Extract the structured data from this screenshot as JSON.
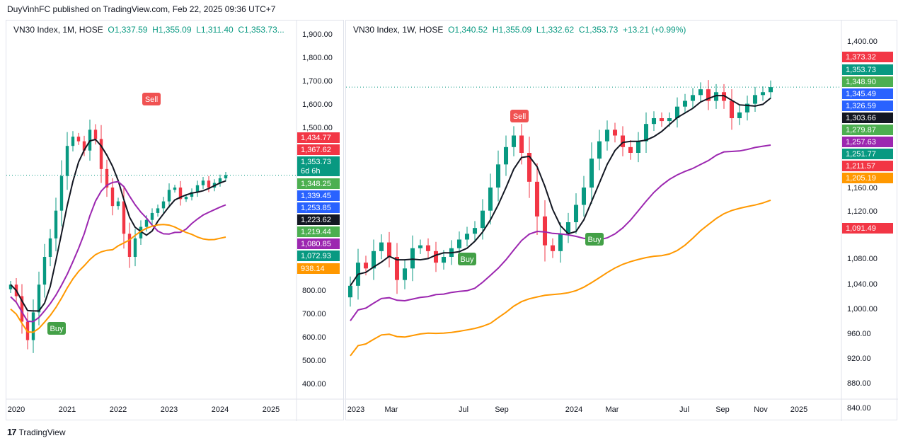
{
  "header": {
    "text": "DuyVinhFC published on TradingView.com, Feb 22, 2025 09:36 UTC+7"
  },
  "footer": {
    "brand": "TradingView",
    "logo": "17"
  },
  "left": {
    "legend": {
      "symbol": "VN30 Index, 1M, HOSE",
      "o": "O1,337.59",
      "h": "H1,355.09",
      "l": "L1,311.40",
      "c": "C1,353.73..."
    },
    "y_ticks": [
      "1,900.00",
      "1,800.00",
      "1,700.00",
      "1,600.00",
      "1,500.00",
      "800.00",
      "700.00",
      "600.00",
      "500.00",
      "400.00"
    ],
    "x_ticks": [
      "2020",
      "2021",
      "2022",
      "2023",
      "2024",
      "2025"
    ],
    "labels": [
      {
        "text": "1,434.77",
        "color": "#f23645"
      },
      {
        "text": "1,367.62",
        "color": "#f23645"
      },
      {
        "text": "1,353.73",
        "sub": "6d 6h",
        "color": "#089981"
      },
      {
        "text": "1,348.25",
        "color": "#4caf50"
      },
      {
        "text": "1,339.45",
        "color": "#2962ff"
      },
      {
        "text": "1,253.85",
        "color": "#2962ff"
      },
      {
        "text": "1,223.62",
        "color": "#131722"
      },
      {
        "text": "1,219.44",
        "color": "#4caf50"
      },
      {
        "text": "1,080.85",
        "color": "#9c27b0"
      },
      {
        "text": "1,072.93",
        "color": "#089981"
      },
      {
        "text": "938.14",
        "color": "#ff9800"
      }
    ],
    "signals": [
      {
        "text": "Sell",
        "color": "#f05252"
      },
      {
        "text": "Buy",
        "color": "#43a047"
      }
    ]
  },
  "right": {
    "legend": {
      "symbol": "VN30 Index, 1W, HOSE",
      "o": "O1,340.52",
      "h": "H1,355.09",
      "l": "L1,332.62",
      "c": "C1,353.73",
      "chg": "+13.21 (+0.99%)"
    },
    "y_ticks": [
      "1,400.00",
      "1,160.00",
      "1,120.00",
      "1,080.00",
      "1,040.00",
      "1,000.00",
      "960.00",
      "920.00",
      "880.00",
      "840.00"
    ],
    "x_ticks": [
      "2023",
      "Mar",
      "Jul",
      "Sep",
      "2024",
      "Mar",
      "Jul",
      "Sep",
      "Nov",
      "2025"
    ],
    "labels": [
      {
        "text": "1,373.32",
        "color": "#f23645"
      },
      {
        "text": "1,353.73",
        "color": "#089981"
      },
      {
        "text": "1,348.90",
        "color": "#4caf50"
      },
      {
        "text": "1,345.49",
        "color": "#2962ff"
      },
      {
        "text": "1,326.59",
        "color": "#2962ff"
      },
      {
        "text": "1,303.66",
        "color": "#131722"
      },
      {
        "text": "1,279.87",
        "color": "#4caf50"
      },
      {
        "text": "1,257.63",
        "color": "#9c27b0"
      },
      {
        "text": "1,251.77",
        "color": "#089981"
      },
      {
        "text": "1,211.57",
        "color": "#f23645"
      },
      {
        "text": "1,205.19",
        "color": "#ff9800"
      },
      {
        "text": "1,091.49",
        "color": "#f23645"
      }
    ],
    "signals": [
      {
        "text": "Sell",
        "color": "#f05252"
      },
      {
        "text": "Buy",
        "color": "#43a047"
      },
      {
        "text": "Buy",
        "color": "#43a047"
      }
    ]
  },
  "chart_data": [
    {
      "type": "candlestick",
      "title": "VN30 Index, 1M, HOSE",
      "ylim": [
        400,
        1900
      ],
      "open": 1337.59,
      "high": 1355.09,
      "low": 1311.4,
      "close": 1353.73,
      "close_series": [
        880,
        830,
        720,
        640,
        760,
        880,
        1000,
        1080,
        1200,
        1350,
        1480,
        1520,
        1500,
        1460,
        1550,
        1510,
        1380,
        1300,
        1220,
        1240,
        1100,
        1000,
        1080,
        1130,
        1160,
        1190,
        1210,
        1240,
        1290,
        1300,
        1250,
        1260,
        1280,
        1310,
        1330,
        1300,
        1320,
        1340,
        1353.73
      ],
      "ma_black_last": 1223.62,
      "ma_purple_last": 1080.85,
      "ma_orange_last": 938.14
    },
    {
      "type": "candlestick",
      "title": "VN30 Index, 1W, HOSE",
      "ylim": [
        820,
        1420
      ],
      "open": 1340.52,
      "high": 1355.09,
      "low": 1332.62,
      "close": 1353.73,
      "change": 13.21,
      "change_pct": 0.99,
      "close_series": [
        1010,
        1050,
        1040,
        1070,
        1085,
        1060,
        1020,
        1040,
        1075,
        1080,
        1070,
        1050,
        1060,
        1075,
        1090,
        1100,
        1110,
        1140,
        1180,
        1220,
        1250,
        1270,
        1240,
        1190,
        1130,
        1080,
        1070,
        1100,
        1120,
        1150,
        1180,
        1230,
        1260,
        1280,
        1270,
        1250,
        1240,
        1260,
        1290,
        1300,
        1295,
        1300,
        1320,
        1330,
        1340,
        1350,
        1330,
        1345,
        1330,
        1300,
        1310,
        1325,
        1340,
        1345,
        1353.73
      ],
      "ma_black_last": 1303.66,
      "ma_purple_last": 1257.63,
      "ma_orange_last": 1205.19,
      "ma_red_last": 1091.49
    }
  ]
}
